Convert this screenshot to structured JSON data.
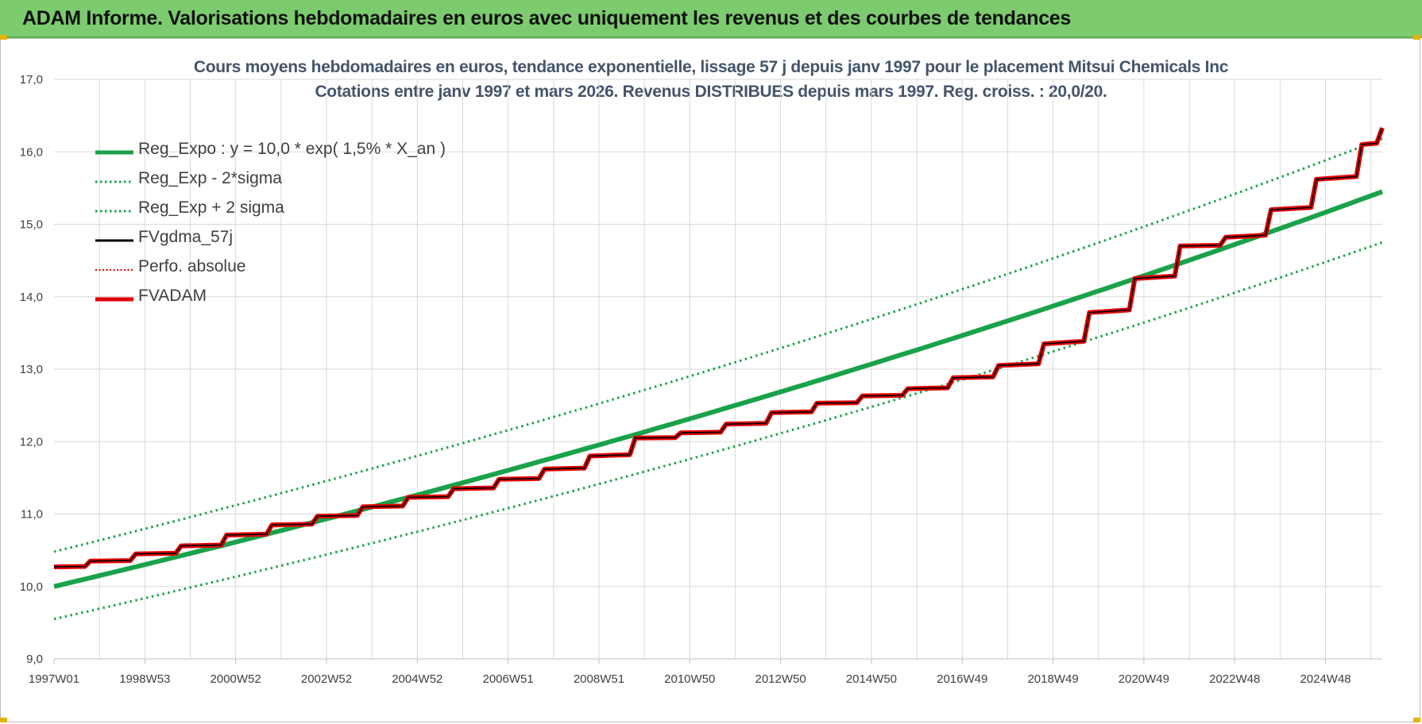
{
  "header": {
    "title": "ADAM Informe. Valorisations hebdomadaires en euros avec uniquement les revenus et des courbes de tendances"
  },
  "chart_data": {
    "type": "line",
    "title": "Cours moyens hebdomadaires en euros, tendance exponentielle, lissage 57 j depuis janv 1997 pour le placement Mitsui Chemicals Inc",
    "subtitle": "Cotations entre janv 1997 et mars 2026. Revenus DISTRIBUES depuis mars 1997. Reg. croiss. : 20,0/20.",
    "xlabel": "",
    "ylabel": "",
    "x_range": [
      1997.0,
      2026.25
    ],
    "ylim": [
      9.0,
      17.0
    ],
    "y_ticks": [
      "9,0",
      "10,0",
      "11,0",
      "12,0",
      "13,0",
      "14,0",
      "15,0",
      "16,0",
      "17,0"
    ],
    "x_ticks": [
      {
        "label": "1997W01",
        "year": 1997.0
      },
      {
        "label": "1998W53",
        "year": 1999.0
      },
      {
        "label": "2000W52",
        "year": 2001.0
      },
      {
        "label": "2002W52",
        "year": 2003.0
      },
      {
        "label": "2004W52",
        "year": 2005.0
      },
      {
        "label": "2006W51",
        "year": 2007.0
      },
      {
        "label": "2008W51",
        "year": 2009.0
      },
      {
        "label": "2010W50",
        "year": 2011.0
      },
      {
        "label": "2012W50",
        "year": 2013.0
      },
      {
        "label": "2014W50",
        "year": 2015.0
      },
      {
        "label": "2016W49",
        "year": 2017.0
      },
      {
        "label": "2018W49",
        "year": 2019.0
      },
      {
        "label": "2020W49",
        "year": 2021.0
      },
      {
        "label": "2022W48",
        "year": 2023.0
      },
      {
        "label": "2024W48",
        "year": 2025.0
      }
    ],
    "grid": true,
    "legend_position": "top-left",
    "series": [
      {
        "name": "Reg_Expo : y = 10,0 * exp( 1,5% *  X_an )",
        "color": "#1aa24a",
        "style": "solid-thick",
        "x": [
          1997.0,
          2026.25
        ],
        "y": [
          10.0,
          15.45
        ],
        "model": "exponential"
      },
      {
        "name": "Reg_Exp - 2*sigma",
        "color": "#1aa24a",
        "style": "dotted",
        "x": [
          1997.0,
          2026.25
        ],
        "y": [
          9.55,
          14.75
        ],
        "model": "exponential"
      },
      {
        "name": "Reg_Exp + 2 sigma",
        "color": "#1aa24a",
        "style": "dotted",
        "x": [
          1997.0,
          2026.25
        ],
        "y": [
          10.48,
          16.18
        ],
        "model": "exponential"
      },
      {
        "name": "FVgdma_57j",
        "color": "#000000",
        "style": "solid",
        "x": [
          1997.0,
          1997.8,
          1998.8,
          1999.8,
          2000.8,
          2001.8,
          2002.8,
          2003.8,
          2004.8,
          2005.8,
          2006.8,
          2007.8,
          2008.8,
          2009.8,
          2010.8,
          2011.8,
          2012.8,
          2013.8,
          2014.8,
          2015.8,
          2016.8,
          2017.8,
          2018.8,
          2019.8,
          2020.8,
          2021.8,
          2022.8,
          2023.8,
          2024.8,
          2025.8,
          2026.25
        ],
        "y": [
          10.27,
          10.35,
          10.45,
          10.56,
          10.71,
          10.85,
          10.97,
          11.1,
          11.23,
          11.35,
          11.48,
          11.62,
          11.8,
          12.05,
          12.12,
          12.24,
          12.4,
          12.53,
          12.63,
          12.73,
          12.88,
          13.05,
          13.35,
          13.78,
          14.25,
          14.7,
          14.82,
          15.2,
          15.62,
          16.1,
          16.33
        ]
      },
      {
        "name": "Perfo. absolue",
        "color": "#e00000",
        "style": "dotted"
      },
      {
        "name": "FVADAM",
        "color": "#e00000",
        "style": "solid-thick",
        "x": [
          1997.0,
          1997.8,
          1998.8,
          1999.8,
          2000.8,
          2001.8,
          2002.8,
          2003.8,
          2004.8,
          2005.8,
          2006.8,
          2007.8,
          2008.8,
          2009.8,
          2010.8,
          2011.8,
          2012.8,
          2013.8,
          2014.8,
          2015.8,
          2016.8,
          2017.8,
          2018.8,
          2019.8,
          2020.8,
          2021.8,
          2022.8,
          2023.8,
          2024.8,
          2025.8,
          2026.25
        ],
        "y": [
          10.27,
          10.35,
          10.45,
          10.56,
          10.71,
          10.85,
          10.97,
          11.1,
          11.23,
          11.35,
          11.48,
          11.62,
          11.8,
          12.05,
          12.12,
          12.24,
          12.4,
          12.53,
          12.63,
          12.73,
          12.88,
          13.05,
          13.35,
          13.78,
          14.25,
          14.7,
          14.82,
          15.2,
          15.62,
          16.1,
          16.33
        ]
      }
    ]
  }
}
